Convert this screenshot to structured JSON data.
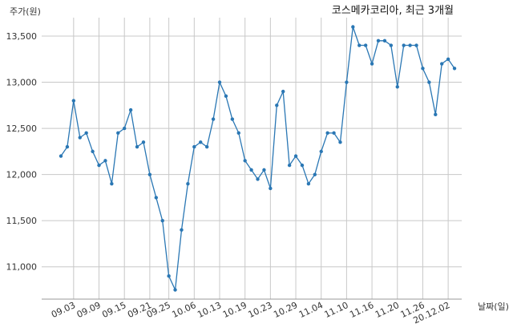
{
  "chart_data": {
    "type": "line",
    "title": "코스메카코리아, 최근 3개월",
    "ylabel": "주가(원)",
    "xlabel": "날짜(일)",
    "ylim": [
      10650,
      13700
    ],
    "yticks": [
      11000,
      11500,
      12000,
      12500,
      13000,
      13500
    ],
    "ytick_labels": [
      "11,000",
      "11,500",
      "12,000",
      "12,500",
      "13,000",
      "13,500"
    ],
    "xtick_labels": [
      "09.03",
      "09.09",
      "09.15",
      "09.21",
      "09.25",
      "10.06",
      "10.13",
      "10.19",
      "10.23",
      "10.29",
      "11.04",
      "11.10",
      "11.16",
      "11.20",
      "11.26",
      "20.12.02"
    ],
    "xtick_index": [
      2,
      6,
      10,
      14,
      17,
      21,
      25,
      29,
      33,
      37,
      41,
      45,
      49,
      53,
      57,
      61
    ],
    "grid": true,
    "color": "#2a77b4",
    "values": [
      12200,
      12300,
      12800,
      12400,
      12450,
      12250,
      12100,
      12150,
      11900,
      12450,
      12500,
      12700,
      12300,
      12350,
      12000,
      11750,
      11500,
      10900,
      10750,
      11400,
      11900,
      12300,
      12350,
      12300,
      12600,
      13000,
      12850,
      12600,
      12450,
      12150,
      12050,
      11950,
      12050,
      11850,
      12750,
      12900,
      12100,
      12200,
      12100,
      11900,
      12000,
      12250,
      12450,
      12450,
      12350,
      13000,
      13600,
      13400,
      13400,
      13200,
      13450,
      13450,
      13400,
      12950,
      13400,
      13400,
      13400,
      13150,
      13000,
      12650,
      13200,
      13250,
      13150
    ]
  }
}
